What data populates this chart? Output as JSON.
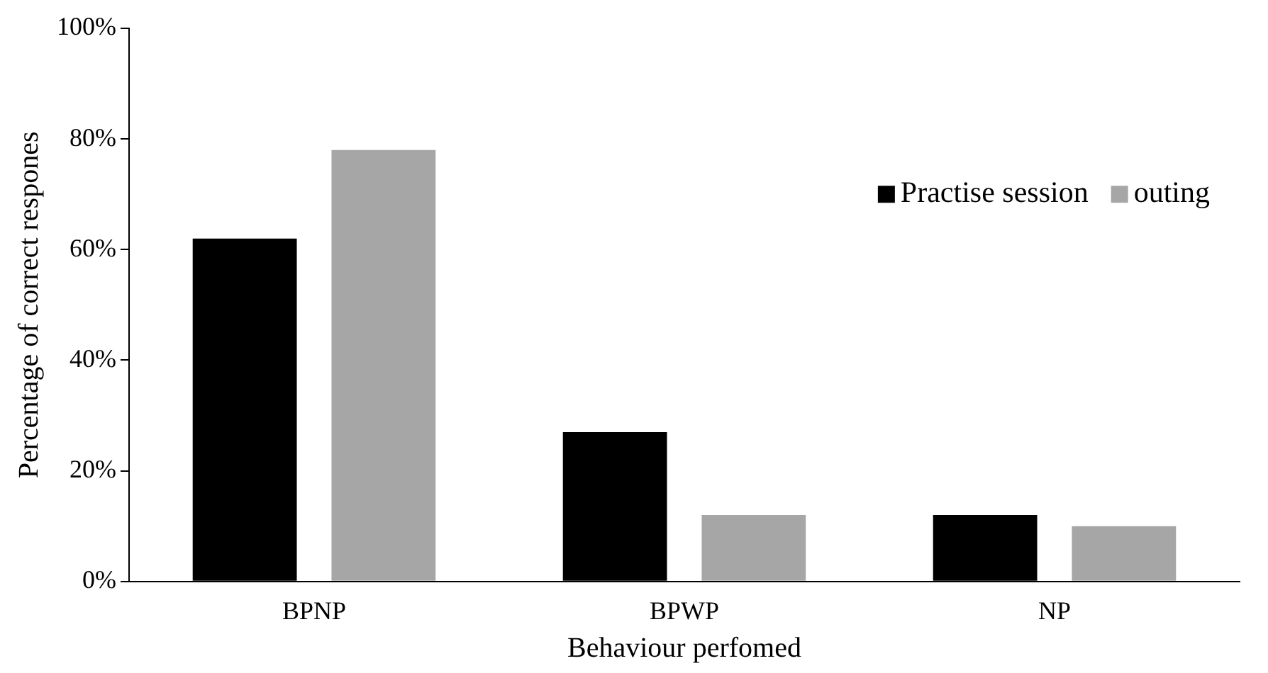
{
  "chart_data": {
    "type": "bar",
    "xlabel": "Behaviour perfomed",
    "ylabel": "Percentage of correct respones",
    "categories": [
      "BPNP",
      "BPWP",
      "NP"
    ],
    "series": [
      {
        "name": "Practise session",
        "color": "#000000",
        "values": [
          62,
          27,
          12
        ]
      },
      {
        "name": "outing",
        "color": "#a6a6a6",
        "values": [
          78,
          12,
          10
        ]
      }
    ],
    "ylim": [
      0,
      100
    ],
    "yticks": [
      {
        "value": 0,
        "label": "0%"
      },
      {
        "value": 20,
        "label": "20%"
      },
      {
        "value": 40,
        "label": "40%"
      },
      {
        "value": 60,
        "label": "60%"
      },
      {
        "value": 80,
        "label": "80%"
      },
      {
        "value": 100,
        "label": "100%"
      }
    ],
    "grid": false,
    "legend": "right"
  }
}
